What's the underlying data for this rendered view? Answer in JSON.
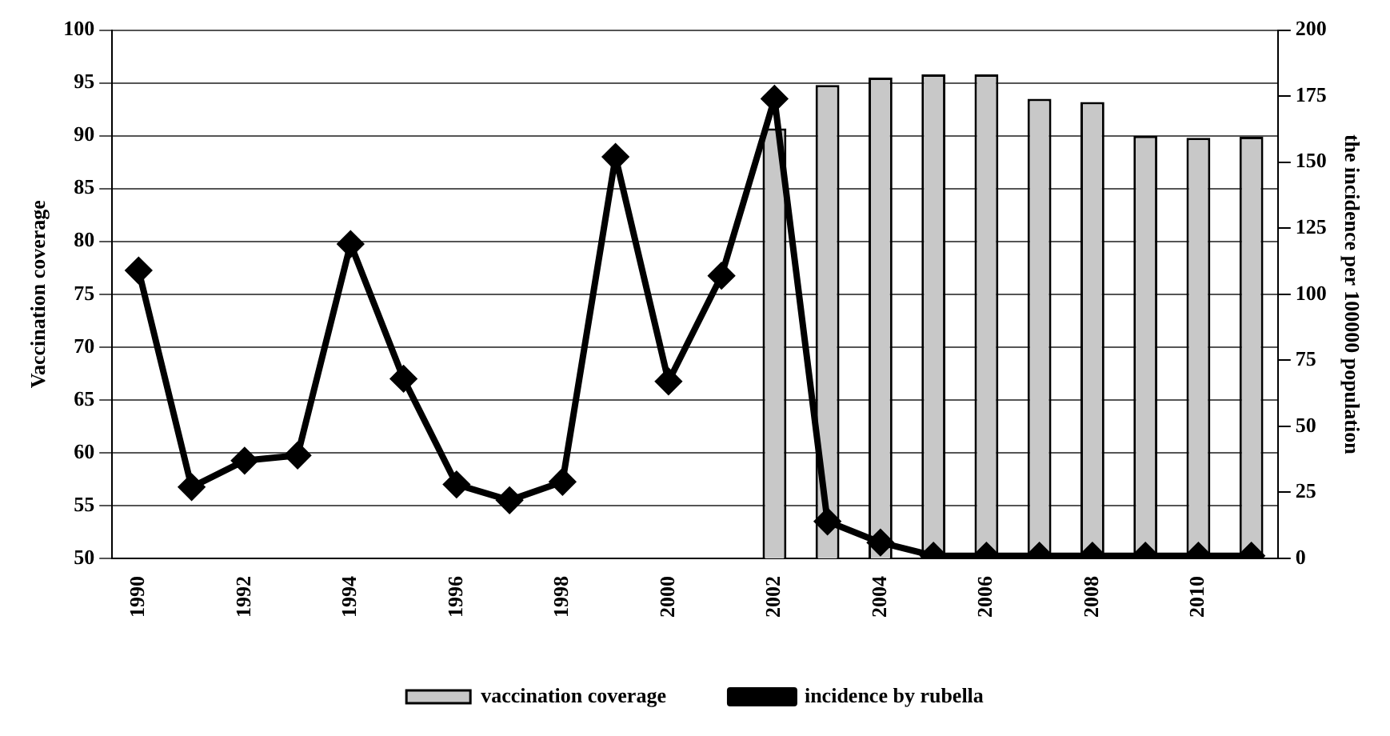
{
  "chart_data": {
    "type": "bar",
    "categories": [
      "1990",
      null,
      "1992",
      null,
      "1994",
      null,
      "1996",
      null,
      "1998",
      null,
      "2000",
      null,
      "2002",
      null,
      "2004",
      null,
      "2006",
      null,
      "2008",
      null,
      "2010",
      null
    ],
    "series": [
      {
        "name": "vaccination coverage",
        "color": "#c8c8c8",
        "values": [
          null,
          null,
          null,
          null,
          null,
          null,
          null,
          null,
          null,
          null,
          null,
          null,
          90.7,
          94.8,
          95.5,
          95.8,
          95.8,
          93.5,
          93.2,
          90,
          89.8,
          89.9
        ]
      },
      {
        "name": "incidence by rubella",
        "type": "line",
        "axis": "y2",
        "color": "#000000",
        "values": [
          109,
          27,
          37,
          39,
          119,
          68,
          28,
          22,
          29,
          152,
          67,
          107,
          174,
          14,
          6,
          1,
          1,
          1,
          1,
          1,
          1,
          1
        ]
      }
    ],
    "ylabel": "Vaccination coverage",
    "y2label": "the incidence per 100000 population",
    "ylim": [
      50,
      100
    ],
    "yticks": [
      50,
      55,
      60,
      65,
      70,
      75,
      80,
      85,
      90,
      95,
      100
    ],
    "y2lim": [
      0,
      200
    ],
    "y2ticks": [
      0,
      25,
      50,
      75,
      100,
      125,
      150,
      175,
      200
    ],
    "grid": "y",
    "legend": "bottom",
    "marker": "diamond",
    "line_style": "solid"
  }
}
